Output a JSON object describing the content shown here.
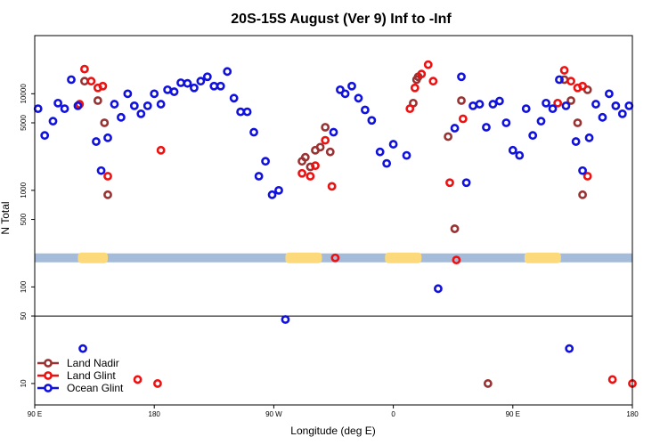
{
  "chart_data": {
    "type": "scatter",
    "title": "20S-15S August (Ver 9)   Inf to -Inf",
    "xlabel": "Longitude (deg E)",
    "ylabel": "N Total",
    "xlim": [
      90,
      450
    ],
    "ylim": [
      6,
      40000
    ],
    "yscale": "log",
    "x_ticks": [
      {
        "value": 90,
        "label": "90 E"
      },
      {
        "value": 162,
        "label": "180"
      },
      {
        "value": 234,
        "label": "90 W"
      },
      {
        "value": 306,
        "label": "0"
      },
      {
        "value": 378,
        "label": "90 E"
      },
      {
        "value": 450,
        "label": "180"
      }
    ],
    "y_ticks": [
      {
        "value": 10,
        "label": "10"
      },
      {
        "value": 50,
        "label": "50"
      },
      {
        "value": 100,
        "label": "100"
      },
      {
        "value": 500,
        "label": "500"
      },
      {
        "value": 1000,
        "label": "1000"
      },
      {
        "value": 5000,
        "label": "5000"
      },
      {
        "value": 10000,
        "label": "10000"
      }
    ],
    "reference_line_y": 50,
    "land_band_y": 200,
    "land_mask_segments": [
      [
        116,
        134
      ],
      [
        241,
        263
      ],
      [
        301,
        323
      ],
      [
        385,
        407
      ]
    ],
    "colors": {
      "land_nadir": "#993333",
      "land_glint": "#ee1111",
      "ocean_glint": "#1111dd",
      "ocean_band": "#a4bcda",
      "land_band": "#fcd97a"
    },
    "legend": {
      "position": "bottom-left",
      "entries": [
        {
          "label": "Land Nadir",
          "series": "land_nadir"
        },
        {
          "label": "Land Glint",
          "series": "land_glint"
        },
        {
          "label": "Ocean Glint",
          "series": "ocean_glint"
        }
      ]
    },
    "series": [
      {
        "key": "land_nadir",
        "points": [
          [
            120,
            13500
          ],
          [
            128,
            8500
          ],
          [
            132,
            5000
          ],
          [
            134,
            900
          ],
          [
            251,
            2000
          ],
          [
            253,
            2200
          ],
          [
            256,
            1750
          ],
          [
            259,
            2600
          ],
          [
            262,
            2800
          ],
          [
            265,
            4500
          ],
          [
            268,
            2500
          ],
          [
            363,
            10
          ],
          [
            318,
            8000
          ],
          [
            320,
            14000
          ],
          [
            321,
            15000
          ],
          [
            339,
            3600
          ],
          [
            343,
            400
          ],
          [
            347,
            8500
          ],
          [
            409,
            14000
          ],
          [
            413,
            8500
          ],
          [
            417,
            5000
          ],
          [
            420,
            900
          ],
          [
            423,
            11000
          ]
        ]
      },
      {
        "key": "land_glint",
        "points": [
          [
            117,
            7800
          ],
          [
            120,
            18000
          ],
          [
            124,
            13500
          ],
          [
            128,
            11500
          ],
          [
            131,
            12000
          ],
          [
            134,
            1400
          ],
          [
            166,
            2600
          ],
          [
            152,
            11
          ],
          [
            164,
            10
          ],
          [
            251,
            1500
          ],
          [
            256,
            1400
          ],
          [
            259,
            1800
          ],
          [
            265,
            3300
          ],
          [
            269,
            1100
          ],
          [
            271,
            200
          ],
          [
            316,
            7000
          ],
          [
            319,
            11500
          ],
          [
            323,
            16000
          ],
          [
            327,
            20000
          ],
          [
            330,
            13500
          ],
          [
            340,
            1200
          ],
          [
            344,
            190
          ],
          [
            348,
            5500
          ],
          [
            405,
            8000
          ],
          [
            409,
            17500
          ],
          [
            413,
            13500
          ],
          [
            417,
            11500
          ],
          [
            420,
            12000
          ],
          [
            423,
            1400
          ],
          [
            438,
            11
          ],
          [
            450,
            10
          ]
        ]
      },
      {
        "key": "ocean_glint",
        "points": [
          [
            92,
            7000
          ],
          [
            96,
            3700
          ],
          [
            101,
            5200
          ],
          [
            104,
            8000
          ],
          [
            108,
            7000
          ],
          [
            112,
            14000
          ],
          [
            116,
            7500
          ],
          [
            119,
            23
          ],
          [
            127,
            3200
          ],
          [
            130,
            1600
          ],
          [
            134,
            3500
          ],
          [
            138,
            7800
          ],
          [
            142,
            5700
          ],
          [
            146,
            10000
          ],
          [
            150,
            7500
          ],
          [
            154,
            6200
          ],
          [
            158,
            7500
          ],
          [
            162,
            10000
          ],
          [
            166,
            7800
          ],
          [
            170,
            11000
          ],
          [
            174,
            10500
          ],
          [
            178,
            13000
          ],
          [
            182,
            12800
          ],
          [
            186,
            11500
          ],
          [
            190,
            13500
          ],
          [
            194,
            15000
          ],
          [
            198,
            12000
          ],
          [
            202,
            12000
          ],
          [
            206,
            17000
          ],
          [
            210,
            9000
          ],
          [
            214,
            6500
          ],
          [
            218,
            6500
          ],
          [
            222,
            4000
          ],
          [
            225,
            1400
          ],
          [
            229,
            2000
          ],
          [
            233,
            900
          ],
          [
            237,
            1000
          ],
          [
            241,
            46
          ],
          [
            270,
            4000
          ],
          [
            274,
            11000
          ],
          [
            277,
            10000
          ],
          [
            281,
            12000
          ],
          [
            285,
            9000
          ],
          [
            289,
            6800
          ],
          [
            293,
            5300
          ],
          [
            298,
            2500
          ],
          [
            302,
            1900
          ],
          [
            306,
            3000
          ],
          [
            314,
            2300
          ],
          [
            326,
            0
          ],
          [
            333,
            96
          ],
          [
            343,
            4400
          ],
          [
            347,
            15000
          ],
          [
            350,
            1200
          ],
          [
            354,
            7500
          ],
          [
            358,
            7800
          ],
          [
            362,
            4500
          ],
          [
            366,
            7800
          ],
          [
            370,
            8400
          ],
          [
            374,
            5000
          ],
          [
            378,
            2600
          ],
          [
            382,
            2300
          ],
          [
            386,
            7000
          ],
          [
            390,
            3700
          ],
          [
            395,
            5200
          ],
          [
            398,
            8000
          ],
          [
            402,
            7000
          ],
          [
            406,
            14000
          ],
          [
            410,
            7500
          ],
          [
            412,
            23
          ],
          [
            416,
            3200
          ],
          [
            420,
            1600
          ],
          [
            424,
            3500
          ],
          [
            428,
            7800
          ],
          [
            432,
            5700
          ],
          [
            436,
            10000
          ],
          [
            440,
            7500
          ],
          [
            444,
            6200
          ],
          [
            448,
            7500
          ]
        ]
      }
    ]
  }
}
